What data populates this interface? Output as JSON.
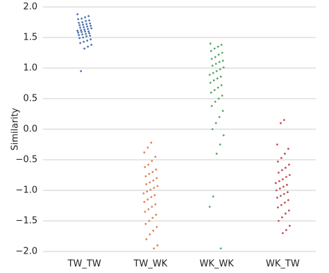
{
  "chart_data": {
    "type": "strip",
    "ylabel": "Similarity",
    "categories": [
      "TW_TW",
      "TW_WK",
      "WK_WK",
      "WK_TW"
    ],
    "colors": [
      "#4c72b0",
      "#dd8452",
      "#55a868",
      "#c44e52"
    ],
    "values": [
      [
        1.88,
        1.85,
        1.83,
        1.81,
        1.8,
        1.78,
        1.77,
        1.75,
        1.74,
        1.73,
        1.72,
        1.71,
        1.7,
        1.69,
        1.68,
        1.67,
        1.66,
        1.65,
        1.64,
        1.63,
        1.62,
        1.61,
        1.6,
        1.6,
        1.59,
        1.58,
        1.57,
        1.56,
        1.55,
        1.54,
        1.53,
        1.52,
        1.5,
        1.49,
        1.47,
        1.45,
        1.43,
        1.41,
        1.38,
        1.35,
        1.32,
        0.95
      ],
      [
        -0.22,
        -0.3,
        -0.38,
        -0.45,
        -0.52,
        -0.58,
        -0.62,
        -0.66,
        -0.7,
        -0.73,
        -0.77,
        -0.8,
        -0.84,
        -0.87,
        -0.9,
        -0.93,
        -0.96,
        -0.99,
        -1.02,
        -1.05,
        -1.08,
        -1.11,
        -1.15,
        -1.19,
        -1.23,
        -1.27,
        -1.31,
        -1.35,
        -1.4,
        -1.45,
        -1.5,
        -1.55,
        -1.6,
        -1.66,
        -1.72,
        -1.8,
        -1.9,
        -1.95
      ],
      [
        1.4,
        1.38,
        1.35,
        1.32,
        1.28,
        1.25,
        1.22,
        1.18,
        1.15,
        1.12,
        1.1,
        1.07,
        1.04,
        1.01,
        0.98,
        0.95,
        0.92,
        0.89,
        0.86,
        0.83,
        0.8,
        0.76,
        0.72,
        0.68,
        0.64,
        0.6,
        0.55,
        0.5,
        0.45,
        0.38,
        0.3,
        0.2,
        0.1,
        0,
        -0.1,
        -0.25,
        -0.4,
        -1.1,
        -1.27,
        -1.95
      ],
      [
        0.15,
        0.1,
        -0.25,
        -0.32,
        -0.4,
        -0.47,
        -0.53,
        -0.58,
        -0.63,
        -0.67,
        -0.71,
        -0.75,
        -0.78,
        -0.82,
        -0.85,
        -0.88,
        -0.91,
        -0.94,
        -0.97,
        -1.0,
        -1.03,
        -1.06,
        -1.09,
        -1.12,
        -1.16,
        -1.2,
        -1.24,
        -1.28,
        -1.33,
        -1.38,
        -1.44,
        -1.5,
        -1.58,
        -1.65,
        -1.7
      ]
    ],
    "ylim": [
      -2,
      2
    ],
    "yticks": [
      {
        "value": 2,
        "label": "2.0"
      },
      {
        "value": 1.5,
        "label": "1.5"
      },
      {
        "value": 1,
        "label": "1.0"
      },
      {
        "value": 0.5,
        "label": "0.5"
      },
      {
        "value": 0,
        "label": "0.0"
      },
      {
        "value": -0.5,
        "label": "−0.5"
      },
      {
        "value": -1,
        "label": "−1.0"
      },
      {
        "value": -1.5,
        "label": "−1.5"
      },
      {
        "value": -2,
        "label": "−2.0"
      }
    ],
    "grid": true
  }
}
